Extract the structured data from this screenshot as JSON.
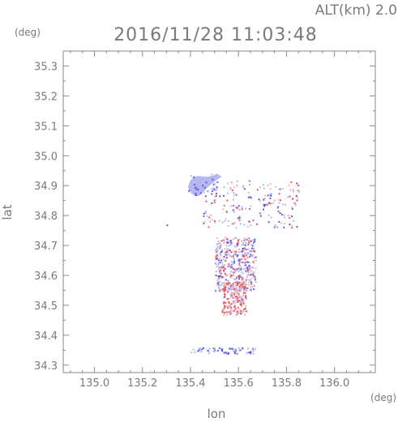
{
  "chart_data": {
    "type": "heatmap",
    "title": "2016/11/28 11:03:48",
    "altitude_label": "ALT(km) 2.0",
    "xlabel": "lon",
    "ylabel": "lat",
    "x_unit": "(deg)",
    "y_unit": "(deg)",
    "xlim": [
      134.87,
      136.17
    ],
    "ylim": [
      34.275,
      35.35
    ],
    "x_ticks": [
      135.0,
      135.2,
      135.4,
      135.6,
      135.8,
      136.0
    ],
    "x_tick_labels": [
      "135.0",
      "135.2",
      "135.4",
      "135.6",
      "135.8",
      "136.0"
    ],
    "y_ticks": [
      34.3,
      34.4,
      34.5,
      34.6,
      34.7,
      34.8,
      34.9,
      35.0,
      35.1,
      35.2,
      35.3
    ],
    "y_tick_labels": [
      "34.3",
      "34.4",
      "34.5",
      "34.6",
      "34.7",
      "34.8",
      "34.9",
      "35.0",
      "35.1",
      "35.2",
      "35.3"
    ],
    "colors": {
      "axis": "#8a8a8a",
      "text": "#7a7a7a",
      "light_blue": "#b4b8ee",
      "blue": "#5a5aee",
      "red": "#ee5555",
      "pink": "#f4b4b4"
    },
    "regions": [
      {
        "name": "upper-northwest-blob",
        "lon": [
          135.39,
          135.51
        ],
        "lat": [
          34.86,
          34.94
        ],
        "color": "light_blue"
      },
      {
        "name": "north-scatter",
        "lon": [
          135.45,
          135.85
        ],
        "lat": [
          34.76,
          34.92
        ],
        "color": "mixed"
      },
      {
        "name": "central-cluster",
        "lon": [
          135.5,
          135.67
        ],
        "lat": [
          34.55,
          34.73
        ],
        "color": "mixed"
      },
      {
        "name": "southern-red-core",
        "lon": [
          135.53,
          135.63
        ],
        "lat": [
          34.47,
          34.58
        ],
        "color": "red"
      },
      {
        "name": "southern-streak",
        "lon": [
          135.4,
          135.67
        ],
        "lat": [
          34.34,
          34.36
        ],
        "color": "blue"
      }
    ]
  }
}
